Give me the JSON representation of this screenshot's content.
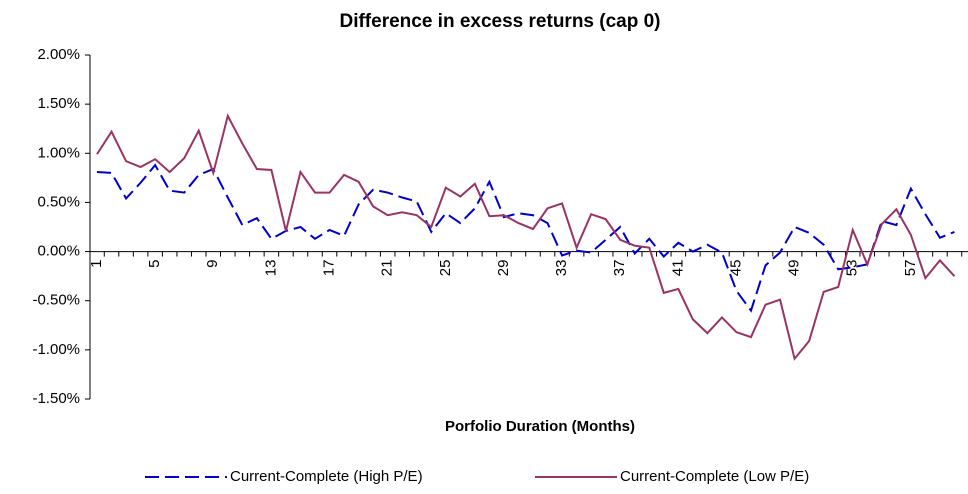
{
  "chart_data": {
    "type": "line",
    "title": "Difference in excess returns (cap 0)",
    "x_label": "Porfolio Duration (Months)",
    "categories": [
      1,
      null,
      null,
      null,
      5,
      null,
      null,
      null,
      9,
      null,
      null,
      null,
      13,
      null,
      null,
      null,
      17,
      null,
      null,
      null,
      21,
      null,
      null,
      null,
      25,
      null,
      null,
      null,
      29,
      null,
      null,
      null,
      33,
      null,
      null,
      null,
      37,
      null,
      null,
      null,
      41,
      null,
      null,
      null,
      45,
      null,
      null,
      null,
      49,
      null,
      null,
      null,
      53,
      null,
      null,
      null,
      57,
      null,
      null,
      null
    ],
    "series": [
      {
        "name": "Current-Complete (High P/E)",
        "color": "#0000cc",
        "dashed": true,
        "values": [
          0.81,
          0.8,
          0.54,
          0.7,
          0.88,
          0.62,
          0.6,
          0.78,
          0.84,
          0.55,
          0.27,
          0.34,
          0.13,
          0.21,
          0.25,
          0.13,
          0.22,
          0.16,
          0.48,
          0.63,
          0.6,
          0.55,
          0.51,
          0.2,
          0.39,
          0.29,
          0.44,
          0.71,
          0.35,
          0.39,
          0.37,
          0.29,
          -0.04,
          0.01,
          -0.01,
          0.12,
          0.25,
          -0.02,
          0.13,
          -0.05,
          0.09,
          0.0,
          0.07,
          -0.01,
          -0.4,
          -0.6,
          -0.14,
          -0.01,
          0.25,
          0.19,
          0.07,
          -0.18,
          -0.16,
          -0.13,
          0.31,
          0.27,
          0.64,
          0.38,
          0.14,
          0.2
        ]
      },
      {
        "name": "Current-Complete (Low P/E)",
        "color": "#993366",
        "dashed": false,
        "values": [
          0.99,
          1.22,
          0.92,
          0.86,
          0.94,
          0.81,
          0.95,
          1.23,
          0.8,
          1.38,
          1.1,
          0.84,
          0.83,
          0.21,
          0.81,
          0.6,
          0.6,
          0.78,
          0.71,
          0.46,
          0.37,
          0.4,
          0.37,
          0.25,
          0.65,
          0.56,
          0.69,
          0.36,
          0.37,
          0.29,
          0.23,
          0.44,
          0.49,
          0.04,
          0.38,
          0.33,
          0.12,
          0.06,
          0.04,
          -0.42,
          -0.38,
          -0.69,
          -0.83,
          -0.67,
          -0.82,
          -0.87,
          -0.54,
          -0.49,
          -1.09,
          -0.91,
          -0.41,
          -0.36,
          0.22,
          -0.13,
          0.28,
          0.43,
          0.17,
          -0.27,
          -0.09,
          -0.25
        ]
      }
    ],
    "ylim": [
      -1.5,
      2.0
    ],
    "yticks": [
      {
        "value": -1.5,
        "label": "-1.50%"
      },
      {
        "value": -1.0,
        "label": "-1.00%"
      },
      {
        "value": -0.5,
        "label": "-0.50%"
      },
      {
        "value": 0,
        "label": "0.00%"
      },
      {
        "value": 0.5,
        "label": "0.50%"
      },
      {
        "value": 1.0,
        "label": "1.00%"
      },
      {
        "value": 1.5,
        "label": "1.50%"
      },
      {
        "value": 2.0,
        "label": "2.00%"
      }
    ],
    "grid": false,
    "legend": "bottom"
  }
}
